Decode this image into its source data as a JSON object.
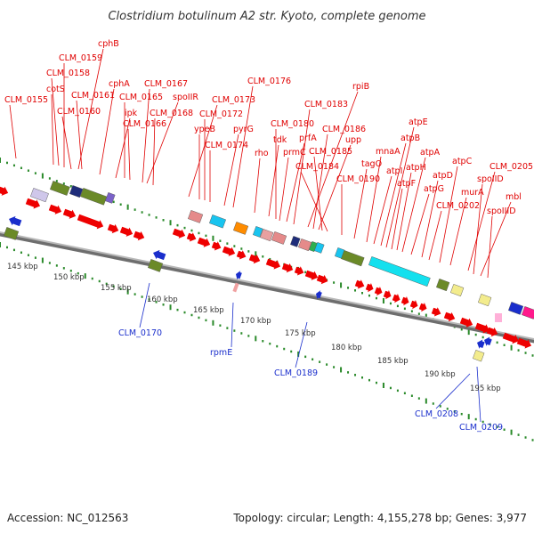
{
  "title": "Clostridium botulinum A2 str. Kyoto, complete genome",
  "footer": {
    "accession": "Accession: NC_012563",
    "summary": "Topology: circular; Length: 4,155,278 bp; Genes: 3,977"
  },
  "colors": {
    "forward_label": "#e00000",
    "reverse_label": "#1a2ecc",
    "forward_arrow": "#ee0000",
    "reverse_arrow": "#1a2ecc",
    "tick_green": "#2a8a2a",
    "backbone": "#888888"
  },
  "chart_data": {
    "type": "genome_map",
    "axis_unit": "kbp",
    "tick_labels": [
      "145 kbp",
      "150 kbp",
      "155 kbp",
      "160 kbp",
      "165 kbp",
      "170 kbp",
      "175 kbp",
      "180 kbp",
      "185 kbp",
      "190 kbp",
      "195 kbp"
    ],
    "forward_labels": [
      "CLM_0155",
      "cotS",
      "CLM_0158",
      "CLM_0159",
      "cphB",
      "CLM_0161",
      "CLM_0160",
      "cphA",
      "ipk",
      "CLM_0165",
      "CLM_0166",
      "CLM_0167",
      "spoIIR",
      "CLM_0168",
      "CLM_0173",
      "ypeB",
      "CLM_0172",
      "CLM_0174",
      "pyrG",
      "CLM_0176",
      "rho",
      "tdk",
      "CLM_0180",
      "prmC",
      "prfA",
      "CLM_0183",
      "rpiB",
      "CLM_0186",
      "upp",
      "CLM_0185",
      "CLM_0184",
      "CLM_0190",
      "tagO",
      "mnaA",
      "atpI",
      "atpB",
      "atpE",
      "atpF",
      "atpH",
      "atpA",
      "atpG",
      "atpD",
      "atpC",
      "murA",
      "CLM_0202",
      "CLM_0205",
      "spoIID",
      "mbl",
      "spoIIID"
    ],
    "reverse_labels": [
      "CLM_0170",
      "rpmE",
      "CLM_0189",
      "CLM_0208",
      "CLM_0209"
    ]
  }
}
